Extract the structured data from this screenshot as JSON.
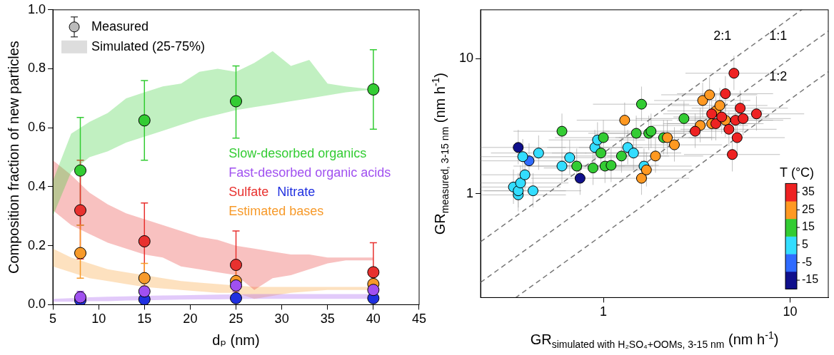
{
  "chart_data": [
    {
      "type": "scatter",
      "x_label": "dₚ (nm)",
      "y_label": "Composition fraction of new particles",
      "xlim": [
        5,
        45
      ],
      "xticks": [
        5,
        10,
        15,
        20,
        25,
        30,
        35,
        40,
        45
      ],
      "ylim": [
        0,
        1
      ],
      "yticks": [
        {
          "value": 0,
          "label": "0.0"
        },
        0.2,
        0.4,
        0.6,
        0.8,
        {
          "value": 1,
          "label": "1.0"
        }
      ],
      "grid": false,
      "annotations": {
        "measured": "Measured",
        "simulated": "Simulated (25-75%)"
      },
      "series": [
        {
          "name": "Slow-desorbed organics",
          "color": "#33cc33",
          "x": [
            8,
            15,
            25,
            40
          ],
          "values": [
            0.455,
            0.625,
            0.69,
            0.73
          ],
          "error_low": [
            0.27,
            0.49,
            0.565,
            0.595
          ],
          "error_high": [
            0.635,
            0.76,
            0.81,
            0.865
          ],
          "simulated_x": [
            5,
            7,
            9,
            11,
            13,
            15,
            17,
            19,
            21,
            23,
            25,
            27,
            29,
            31,
            33,
            35,
            37,
            40
          ],
          "simulated_low": [
            0.3,
            0.45,
            0.5,
            0.52,
            0.55,
            0.57,
            0.59,
            0.61,
            0.63,
            0.645,
            0.66,
            0.67,
            0.68,
            0.69,
            0.7,
            0.71,
            0.72,
            0.73
          ],
          "simulated_high": [
            0.42,
            0.58,
            0.62,
            0.65,
            0.7,
            0.72,
            0.74,
            0.75,
            0.79,
            0.8,
            0.79,
            0.82,
            0.86,
            0.81,
            0.83,
            0.75,
            0.74,
            0.73
          ]
        },
        {
          "name": "Fast-desorbed organic acids",
          "color": "#a050f0",
          "x": [
            8,
            15,
            25,
            40
          ],
          "values": [
            0.025,
            0.045,
            0.065,
            0.05
          ],
          "error_low": [
            0.01,
            0.03,
            0.045,
            0.03
          ],
          "error_high": [
            0.045,
            0.06,
            0.085,
            0.07
          ],
          "simulated_x": [
            5,
            7,
            9,
            11,
            13,
            15,
            17,
            19,
            21,
            23,
            25,
            27,
            29,
            31,
            33,
            35,
            37,
            40
          ],
          "simulated_low": [
            0.01,
            0.01,
            0.012,
            0.012,
            0.014,
            0.015,
            0.016,
            0.017,
            0.018,
            0.018,
            0.019,
            0.02,
            0.02,
            0.02,
            0.02,
            0.02,
            0.02,
            0.02
          ],
          "simulated_high": [
            0.02,
            0.022,
            0.025,
            0.027,
            0.028,
            0.03,
            0.031,
            0.032,
            0.033,
            0.034,
            0.035,
            0.036,
            0.036,
            0.036,
            0.036,
            0.036,
            0.036,
            0.036
          ]
        },
        {
          "name": "Sulfate",
          "color": "#e8312f",
          "x": [
            8,
            15,
            25,
            40
          ],
          "values": [
            0.32,
            0.215,
            0.135,
            0.11
          ],
          "error_low": [
            0.155,
            0.09,
            0.03,
            0.01
          ],
          "error_high": [
            0.49,
            0.345,
            0.25,
            0.21
          ],
          "simulated_x": [
            5,
            7,
            9,
            11,
            13,
            15,
            17,
            19,
            21,
            23,
            25,
            27,
            29,
            31,
            33,
            35,
            37,
            40
          ],
          "simulated_low": [
            0.32,
            0.27,
            0.24,
            0.21,
            0.19,
            0.17,
            0.16,
            0.13,
            0.12,
            0.11,
            0.1,
            0.05,
            0.09,
            0.1,
            0.12,
            0.14,
            0.15,
            0.15
          ],
          "simulated_high": [
            0.49,
            0.44,
            0.38,
            0.34,
            0.31,
            0.29,
            0.27,
            0.25,
            0.23,
            0.22,
            0.2,
            0.19,
            0.18,
            0.17,
            0.17,
            0.16,
            0.16,
            0.16
          ]
        },
        {
          "name": "Nitrate",
          "color": "#2030e0",
          "x": [
            8,
            15,
            25,
            40
          ],
          "values": [
            0.015,
            0.018,
            0.022,
            0.022
          ],
          "error_low": [
            0.008,
            0.01,
            0.012,
            0.012
          ],
          "error_high": [
            0.025,
            0.028,
            0.032,
            0.035
          ]
        },
        {
          "name": "Estimated bases",
          "color": "#f79a2a",
          "x": [
            8,
            15,
            25,
            40
          ],
          "values": [
            0.175,
            0.09,
            0.08,
            0.07
          ],
          "error_low": [
            0.09,
            0.04,
            0.035,
            0.03
          ],
          "error_high": [
            0.27,
            0.14,
            0.12,
            0.1
          ],
          "simulated_x": [
            5,
            7,
            9,
            11,
            13,
            15,
            17,
            19,
            21,
            23,
            25,
            27,
            29,
            31,
            33,
            35,
            37,
            40
          ],
          "simulated_low": [
            0.13,
            0.11,
            0.09,
            0.08,
            0.07,
            0.06,
            0.055,
            0.05,
            0.045,
            0.04,
            0.04,
            0.02,
            0.03,
            0.04,
            0.045,
            0.05,
            0.05,
            0.05
          ],
          "simulated_high": [
            0.19,
            0.16,
            0.14,
            0.12,
            0.11,
            0.1,
            0.09,
            0.08,
            0.075,
            0.07,
            0.065,
            0.06,
            0.06,
            0.06,
            0.06,
            0.06,
            0.06,
            0.06
          ]
        }
      ]
    },
    {
      "type": "scatter",
      "log": true,
      "x_label": [
        {
          "text": "GR"
        },
        {
          "text": "simulated with H₂SO₄+OOMs, 3-15 nm",
          "sub": true
        },
        {
          "text": " (nm h"
        },
        {
          "text": "-1",
          "sup": true
        },
        {
          "text": ")"
        }
      ],
      "y_label": [
        {
          "text": "GR"
        },
        {
          "text": "measured, 3-15 nm",
          "sub": true
        },
        {
          "text": " (nm h"
        },
        {
          "text": "-1",
          "sup": true
        },
        {
          "text": ")"
        }
      ],
      "xlim": [
        0.22,
        16
      ],
      "xticks": [
        1,
        10
      ],
      "ylim": [
        0.17,
        23
      ],
      "yticks": [
        1,
        10
      ],
      "grid": false,
      "reference_lines": [
        {
          "label": "2:1",
          "ratio": 2
        },
        {
          "label": "1:1",
          "ratio": 1
        },
        {
          "label": "1:2",
          "ratio": 0.5
        }
      ],
      "colorbar": {
        "title": "T (°C)",
        "range": [
          -20,
          40
        ],
        "ticks": [
          35,
          25,
          15,
          5,
          -5,
          -15
        ],
        "colors": [
          "#10108c",
          "#2f6bff",
          "#33ddff",
          "#33cc33",
          "#ff9922",
          "#ee2222"
        ]
      },
      "x": [
        0.35,
        0.4,
        0.75,
        0.33,
        0.35,
        0.35,
        0.36,
        0.38,
        0.37,
        0.42,
        0.45,
        0.6,
        0.66,
        0.9,
        0.93,
        1.35,
        1.65,
        1.45,
        0.6,
        0.72,
        0.88,
        0.97,
        1.0,
        1.02,
        1.1,
        1.25,
        1.5,
        1.6,
        1.75,
        1.8,
        2.1,
        2.7,
        1.3,
        1.6,
        1.7,
        1.9,
        2.2,
        2.4,
        3.3,
        3.4,
        3.7,
        3.8,
        4.0,
        4.2,
        4.5,
        3.1,
        3.8,
        4.0,
        4.3,
        4.5,
        4.9,
        5.0,
        5.1,
        5.2,
        5.4,
        5.6,
        6.6,
        4.7
      ],
      "values": [
        2.2,
        1.75,
        1.3,
        1.12,
        0.98,
        1.05,
        1.2,
        1.38,
        1.88,
        1.05,
        2.0,
        1.6,
        1.85,
        2.2,
        2.5,
        2.2,
        1.6,
        2.0,
        2.9,
        1.6,
        1.55,
        2.0,
        2.6,
        1.6,
        1.62,
        1.9,
        2.8,
        4.6,
        2.8,
        2.9,
        2.6,
        3.6,
        3.5,
        1.3,
        1.5,
        1.9,
        2.6,
        2.3,
        3.2,
        4.9,
        5.4,
        3.3,
        4.1,
        4.5,
        3.5,
        2.9,
        3.9,
        3.3,
        3.7,
        5.5,
        1.95,
        7.8,
        3.5,
        2.6,
        4.3,
        3.6,
        3.9,
        3.0
      ],
      "T": [
        -15,
        -5,
        -15,
        5,
        5,
        5,
        5,
        5,
        5,
        5,
        5,
        5,
        5,
        5,
        5,
        5,
        5,
        5,
        15,
        15,
        15,
        15,
        15,
        15,
        15,
        15,
        15,
        15,
        15,
        15,
        15,
        15,
        25,
        25,
        25,
        25,
        25,
        25,
        25,
        25,
        25,
        25,
        25,
        25,
        25,
        35,
        35,
        35,
        35,
        35,
        35,
        35,
        35,
        35,
        35,
        35,
        35,
        35
      ],
      "x_low": [
        0.19,
        0.22,
        0.41,
        0.18,
        0.19,
        0.19,
        0.2,
        0.21,
        0.2,
        0.23,
        0.25,
        0.33,
        0.36,
        0.5,
        0.51,
        0.74,
        0.91,
        0.8,
        0.33,
        0.4,
        0.48,
        0.53,
        0.55,
        0.56,
        0.61,
        0.69,
        0.83,
        0.88,
        0.96,
        0.99,
        1.16,
        1.49,
        0.72,
        0.88,
        0.94,
        1.05,
        1.21,
        1.32,
        1.82,
        1.87,
        2.04,
        2.09,
        2.2,
        2.31,
        2.48,
        1.71,
        2.09,
        2.2,
        2.37,
        2.48,
        2.7,
        2.75,
        2.81,
        2.86,
        2.97,
        3.08,
        3.63,
        2.59
      ],
      "x_high": [
        0.63,
        0.72,
        1.35,
        0.59,
        0.63,
        0.63,
        0.65,
        0.68,
        0.67,
        0.76,
        0.81,
        1.08,
        1.19,
        1.62,
        1.67,
        2.43,
        2.97,
        2.61,
        1.08,
        1.3,
        1.58,
        1.75,
        1.8,
        1.84,
        1.98,
        2.25,
        2.7,
        2.88,
        3.15,
        3.24,
        3.78,
        4.86,
        2.34,
        2.88,
        3.06,
        3.42,
        3.96,
        4.32,
        5.94,
        6.12,
        6.66,
        6.84,
        7.2,
        7.56,
        8.1,
        5.58,
        6.84,
        7.2,
        7.74,
        8.1,
        8.82,
        9,
        9.18,
        9.36,
        9.72,
        10.08,
        11.88,
        8.46
      ],
      "y_low": [
        1.65,
        1.31,
        0.98,
        0.84,
        0.74,
        0.79,
        0.9,
        1.04,
        1.41,
        0.79,
        1.5,
        1.2,
        1.39,
        1.65,
        1.88,
        1.65,
        1.2,
        1.5,
        2.18,
        1.2,
        1.16,
        1.5,
        1.95,
        1.2,
        1.22,
        1.43,
        2.1,
        3.45,
        2.1,
        2.18,
        1.95,
        2.7,
        2.63,
        0.98,
        1.13,
        1.43,
        1.95,
        1.73,
        2.4,
        3.68,
        4.05,
        2.48,
        3.08,
        3.38,
        2.63,
        2.18,
        2.93,
        2.48,
        2.78,
        4.13,
        1.46,
        5.85,
        2.63,
        1.95,
        3.23,
        2.7,
        2.93,
        2.25
      ],
      "y_high": [
        2.97,
        2.36,
        1.76,
        1.51,
        1.32,
        1.42,
        1.62,
        1.86,
        2.54,
        1.42,
        2.7,
        2.16,
        2.5,
        2.97,
        3.38,
        2.97,
        2.16,
        2.7,
        3.92,
        2.16,
        2.09,
        2.7,
        3.51,
        2.16,
        2.19,
        2.57,
        3.78,
        6.21,
        3.78,
        3.92,
        3.51,
        4.86,
        4.73,
        1.76,
        2.03,
        2.57,
        3.51,
        3.11,
        4.32,
        6.62,
        7.29,
        4.46,
        5.54,
        6.08,
        4.73,
        3.92,
        5.27,
        4.46,
        5,
        7.43,
        2.63,
        10.53,
        4.73,
        3.51,
        5.81,
        4.86,
        5.27,
        4.05
      ]
    }
  ]
}
